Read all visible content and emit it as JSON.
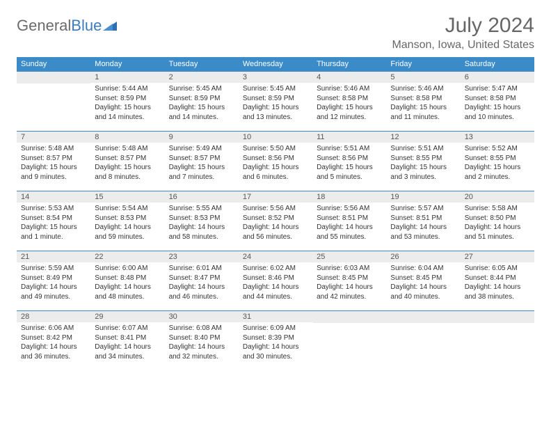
{
  "brand": {
    "part1": "General",
    "part2": "Blue"
  },
  "title": "July 2024",
  "location": "Manson, Iowa, United States",
  "colors": {
    "header_bg": "#3b8bc9",
    "header_text": "#ffffff",
    "daynum_bg": "#ececec",
    "daynum_text": "#555555",
    "border": "#3b8bc9",
    "title_text": "#666666",
    "body_text": "#333333",
    "logo_gray": "#6b6b6b",
    "logo_blue": "#3b7bbf"
  },
  "day_headers": [
    "Sunday",
    "Monday",
    "Tuesday",
    "Wednesday",
    "Thursday",
    "Friday",
    "Saturday"
  ],
  "weeks": [
    [
      {
        "num": "",
        "sunrise": "",
        "sunset": "",
        "daylight": ""
      },
      {
        "num": "1",
        "sunrise": "Sunrise: 5:44 AM",
        "sunset": "Sunset: 8:59 PM",
        "daylight": "Daylight: 15 hours and 14 minutes."
      },
      {
        "num": "2",
        "sunrise": "Sunrise: 5:45 AM",
        "sunset": "Sunset: 8:59 PM",
        "daylight": "Daylight: 15 hours and 14 minutes."
      },
      {
        "num": "3",
        "sunrise": "Sunrise: 5:45 AM",
        "sunset": "Sunset: 8:59 PM",
        "daylight": "Daylight: 15 hours and 13 minutes."
      },
      {
        "num": "4",
        "sunrise": "Sunrise: 5:46 AM",
        "sunset": "Sunset: 8:58 PM",
        "daylight": "Daylight: 15 hours and 12 minutes."
      },
      {
        "num": "5",
        "sunrise": "Sunrise: 5:46 AM",
        "sunset": "Sunset: 8:58 PM",
        "daylight": "Daylight: 15 hours and 11 minutes."
      },
      {
        "num": "6",
        "sunrise": "Sunrise: 5:47 AM",
        "sunset": "Sunset: 8:58 PM",
        "daylight": "Daylight: 15 hours and 10 minutes."
      }
    ],
    [
      {
        "num": "7",
        "sunrise": "Sunrise: 5:48 AM",
        "sunset": "Sunset: 8:57 PM",
        "daylight": "Daylight: 15 hours and 9 minutes."
      },
      {
        "num": "8",
        "sunrise": "Sunrise: 5:48 AM",
        "sunset": "Sunset: 8:57 PM",
        "daylight": "Daylight: 15 hours and 8 minutes."
      },
      {
        "num": "9",
        "sunrise": "Sunrise: 5:49 AM",
        "sunset": "Sunset: 8:57 PM",
        "daylight": "Daylight: 15 hours and 7 minutes."
      },
      {
        "num": "10",
        "sunrise": "Sunrise: 5:50 AM",
        "sunset": "Sunset: 8:56 PM",
        "daylight": "Daylight: 15 hours and 6 minutes."
      },
      {
        "num": "11",
        "sunrise": "Sunrise: 5:51 AM",
        "sunset": "Sunset: 8:56 PM",
        "daylight": "Daylight: 15 hours and 5 minutes."
      },
      {
        "num": "12",
        "sunrise": "Sunrise: 5:51 AM",
        "sunset": "Sunset: 8:55 PM",
        "daylight": "Daylight: 15 hours and 3 minutes."
      },
      {
        "num": "13",
        "sunrise": "Sunrise: 5:52 AM",
        "sunset": "Sunset: 8:55 PM",
        "daylight": "Daylight: 15 hours and 2 minutes."
      }
    ],
    [
      {
        "num": "14",
        "sunrise": "Sunrise: 5:53 AM",
        "sunset": "Sunset: 8:54 PM",
        "daylight": "Daylight: 15 hours and 1 minute."
      },
      {
        "num": "15",
        "sunrise": "Sunrise: 5:54 AM",
        "sunset": "Sunset: 8:53 PM",
        "daylight": "Daylight: 14 hours and 59 minutes."
      },
      {
        "num": "16",
        "sunrise": "Sunrise: 5:55 AM",
        "sunset": "Sunset: 8:53 PM",
        "daylight": "Daylight: 14 hours and 58 minutes."
      },
      {
        "num": "17",
        "sunrise": "Sunrise: 5:56 AM",
        "sunset": "Sunset: 8:52 PM",
        "daylight": "Daylight: 14 hours and 56 minutes."
      },
      {
        "num": "18",
        "sunrise": "Sunrise: 5:56 AM",
        "sunset": "Sunset: 8:51 PM",
        "daylight": "Daylight: 14 hours and 55 minutes."
      },
      {
        "num": "19",
        "sunrise": "Sunrise: 5:57 AM",
        "sunset": "Sunset: 8:51 PM",
        "daylight": "Daylight: 14 hours and 53 minutes."
      },
      {
        "num": "20",
        "sunrise": "Sunrise: 5:58 AM",
        "sunset": "Sunset: 8:50 PM",
        "daylight": "Daylight: 14 hours and 51 minutes."
      }
    ],
    [
      {
        "num": "21",
        "sunrise": "Sunrise: 5:59 AM",
        "sunset": "Sunset: 8:49 PM",
        "daylight": "Daylight: 14 hours and 49 minutes."
      },
      {
        "num": "22",
        "sunrise": "Sunrise: 6:00 AM",
        "sunset": "Sunset: 8:48 PM",
        "daylight": "Daylight: 14 hours and 48 minutes."
      },
      {
        "num": "23",
        "sunrise": "Sunrise: 6:01 AM",
        "sunset": "Sunset: 8:47 PM",
        "daylight": "Daylight: 14 hours and 46 minutes."
      },
      {
        "num": "24",
        "sunrise": "Sunrise: 6:02 AM",
        "sunset": "Sunset: 8:46 PM",
        "daylight": "Daylight: 14 hours and 44 minutes."
      },
      {
        "num": "25",
        "sunrise": "Sunrise: 6:03 AM",
        "sunset": "Sunset: 8:45 PM",
        "daylight": "Daylight: 14 hours and 42 minutes."
      },
      {
        "num": "26",
        "sunrise": "Sunrise: 6:04 AM",
        "sunset": "Sunset: 8:45 PM",
        "daylight": "Daylight: 14 hours and 40 minutes."
      },
      {
        "num": "27",
        "sunrise": "Sunrise: 6:05 AM",
        "sunset": "Sunset: 8:44 PM",
        "daylight": "Daylight: 14 hours and 38 minutes."
      }
    ],
    [
      {
        "num": "28",
        "sunrise": "Sunrise: 6:06 AM",
        "sunset": "Sunset: 8:42 PM",
        "daylight": "Daylight: 14 hours and 36 minutes."
      },
      {
        "num": "29",
        "sunrise": "Sunrise: 6:07 AM",
        "sunset": "Sunset: 8:41 PM",
        "daylight": "Daylight: 14 hours and 34 minutes."
      },
      {
        "num": "30",
        "sunrise": "Sunrise: 6:08 AM",
        "sunset": "Sunset: 8:40 PM",
        "daylight": "Daylight: 14 hours and 32 minutes."
      },
      {
        "num": "31",
        "sunrise": "Sunrise: 6:09 AM",
        "sunset": "Sunset: 8:39 PM",
        "daylight": "Daylight: 14 hours and 30 minutes."
      },
      {
        "num": "",
        "sunrise": "",
        "sunset": "",
        "daylight": ""
      },
      {
        "num": "",
        "sunrise": "",
        "sunset": "",
        "daylight": ""
      },
      {
        "num": "",
        "sunrise": "",
        "sunset": "",
        "daylight": ""
      }
    ]
  ]
}
